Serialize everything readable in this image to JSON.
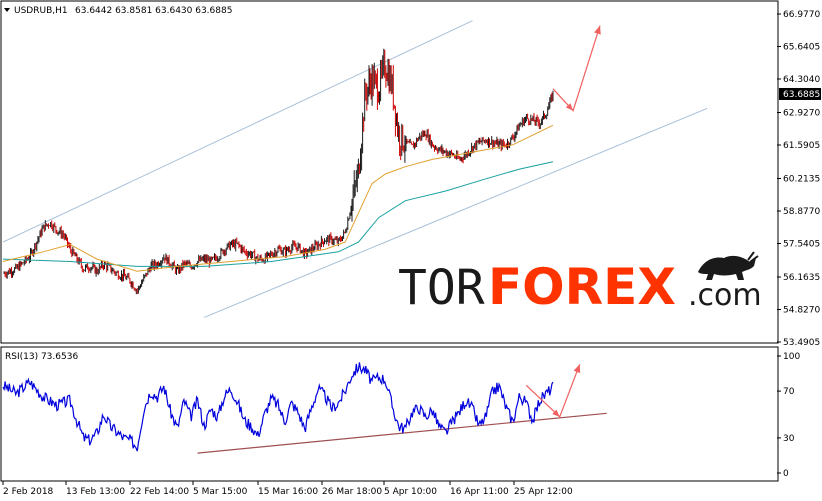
{
  "header": {
    "symbol": "USDRUB,H1",
    "ohlc": "63.6442 63.8581 63.6430 63.6885"
  },
  "rsi_header": "RSI(13) 73.6536",
  "logo": {
    "part1": "TOR",
    "part2": "FOREX",
    "part3": ".com"
  },
  "colors": {
    "candle_up": "#1a1a1a",
    "candle_down": "#cc0000",
    "ma_fast": "#e0a030",
    "ma_slow": "#1aa0a0",
    "channel": "#a8c0d8",
    "arrow": "#f06060",
    "rsi_line": "#0000dd",
    "rsi_trend": "#a05050",
    "current_price_bg": "#000000"
  },
  "chart_data": [
    {
      "type": "candlestick",
      "title": "USDRUB,H1",
      "ylim": [
        53.4905,
        66.977
      ],
      "y_ticks": [
        "66.9770",
        "65.6405",
        "64.3040",
        "62.9270",
        "61.5905",
        "60.2135",
        "58.8770",
        "57.5405",
        "56.1635",
        "54.8270",
        "53.4905"
      ],
      "current_price": "63.6885",
      "x_ticks": [
        "2 Feb 2018",
        "13 Feb 13:00",
        "22 Feb 14:00",
        "5 Mar 15:00",
        "15 Mar 16:00",
        "26 Mar 18:00",
        "5 Apr 10:00",
        "16 Apr 11:00",
        "25 Apr 12:00"
      ],
      "close_path": [
        [
          0,
          56.3
        ],
        [
          2,
          56.5
        ],
        [
          4,
          57.0
        ],
        [
          5,
          57.6
        ],
        [
          6,
          58.2
        ],
        [
          7,
          58.4
        ],
        [
          8,
          58.1
        ],
        [
          9,
          57.9
        ],
        [
          10,
          57.3
        ],
        [
          11,
          56.9
        ],
        [
          12,
          56.5
        ],
        [
          13,
          56.6
        ],
        [
          14,
          56.4
        ],
        [
          15,
          56.7
        ],
        [
          16,
          56.5
        ],
        [
          17,
          56.3
        ],
        [
          18,
          56.2
        ],
        [
          19,
          56.0
        ],
        [
          20,
          55.6
        ],
        [
          21,
          56.1
        ],
        [
          22,
          56.6
        ],
        [
          23,
          56.7
        ],
        [
          24,
          57.0
        ],
        [
          25,
          56.7
        ],
        [
          26,
          56.4
        ],
        [
          27,
          56.7
        ],
        [
          28,
          56.6
        ],
        [
          29,
          56.8
        ],
        [
          30,
          56.9
        ],
        [
          31,
          56.8
        ],
        [
          32,
          57.0
        ],
        [
          33,
          57.3
        ],
        [
          34,
          57.5
        ],
        [
          35,
          57.5
        ],
        [
          36,
          57.2
        ],
        [
          37,
          57.1
        ],
        [
          38,
          56.9
        ],
        [
          39,
          56.9
        ],
        [
          40,
          57.1
        ],
        [
          41,
          57.3
        ],
        [
          42,
          57.2
        ],
        [
          43,
          57.4
        ],
        [
          44,
          57.4
        ],
        [
          45,
          57.1
        ],
        [
          46,
          57.3
        ],
        [
          47,
          57.5
        ],
        [
          48,
          57.7
        ],
        [
          49,
          57.7
        ],
        [
          50,
          57.6
        ],
        [
          51,
          58.0
        ],
        [
          52,
          59.2
        ],
        [
          53,
          60.5
        ],
        [
          54,
          63.7
        ],
        [
          55,
          64.3
        ],
        [
          56,
          63.9
        ],
        [
          57,
          64.9
        ],
        [
          58,
          64.0
        ],
        [
          59,
          62.0
        ],
        [
          60,
          61.7
        ],
        [
          61,
          61.5
        ],
        [
          62,
          61.9
        ],
        [
          63,
          62.1
        ],
        [
          64,
          61.6
        ],
        [
          65,
          61.4
        ],
        [
          66,
          61.3
        ],
        [
          67,
          61.2
        ],
        [
          68,
          61.0
        ],
        [
          69,
          61.2
        ],
        [
          70,
          61.5
        ],
        [
          71,
          61.7
        ],
        [
          72,
          61.8
        ],
        [
          73,
          61.7
        ],
        [
          74,
          61.6
        ],
        [
          75,
          61.6
        ],
        [
          76,
          61.9
        ],
        [
          77,
          62.4
        ],
        [
          78,
          62.7
        ],
        [
          79,
          62.6
        ],
        [
          80,
          62.5
        ],
        [
          81,
          62.9
        ],
        [
          82,
          63.6885
        ]
      ],
      "ma_fast_path": [
        [
          0,
          56.8
        ],
        [
          6,
          57.2
        ],
        [
          10,
          57.5
        ],
        [
          14,
          56.9
        ],
        [
          20,
          56.4
        ],
        [
          26,
          56.6
        ],
        [
          34,
          56.8
        ],
        [
          42,
          57.0
        ],
        [
          48,
          57.3
        ],
        [
          51,
          57.6
        ],
        [
          53,
          58.8
        ],
        [
          55,
          60.0
        ],
        [
          57,
          60.4
        ],
        [
          60,
          60.7
        ],
        [
          64,
          61.0
        ],
        [
          70,
          61.3
        ],
        [
          76,
          61.6
        ],
        [
          82,
          62.4
        ]
      ],
      "ma_slow_path": [
        [
          0,
          56.9
        ],
        [
          10,
          56.8
        ],
        [
          20,
          56.6
        ],
        [
          30,
          56.6
        ],
        [
          40,
          56.8
        ],
        [
          50,
          57.2
        ],
        [
          53,
          57.6
        ],
        [
          56,
          58.6
        ],
        [
          60,
          59.3
        ],
        [
          66,
          59.7
        ],
        [
          72,
          60.2
        ],
        [
          77,
          60.6
        ],
        [
          82,
          60.9
        ]
      ],
      "channel_upper": [
        [
          0,
          57.6
        ],
        [
          70,
          66.7
        ]
      ],
      "channel_lower": [
        [
          30,
          54.5
        ],
        [
          105,
          63.1
        ]
      ],
      "forecast_arrow": [
        [
          82,
          63.9
        ],
        [
          85,
          63.0
        ],
        [
          89,
          66.5
        ]
      ]
    },
    {
      "type": "line",
      "title": "RSI(13) 73.6536",
      "ylim": [
        0,
        100
      ],
      "y_ticks": [
        "100",
        "70",
        "30",
        "0"
      ],
      "rsi_path": [
        [
          0,
          75
        ],
        [
          2,
          68
        ],
        [
          4,
          78
        ],
        [
          6,
          65
        ],
        [
          8,
          58
        ],
        [
          10,
          62
        ],
        [
          11,
          45
        ],
        [
          12,
          30
        ],
        [
          13,
          28
        ],
        [
          14,
          34
        ],
        [
          15,
          50
        ],
        [
          16,
          40
        ],
        [
          17,
          35
        ],
        [
          18,
          30
        ],
        [
          19,
          28
        ],
        [
          20,
          22
        ],
        [
          21,
          55
        ],
        [
          22,
          70
        ],
        [
          23,
          65
        ],
        [
          24,
          74
        ],
        [
          25,
          52
        ],
        [
          26,
          38
        ],
        [
          27,
          62
        ],
        [
          28,
          48
        ],
        [
          29,
          62
        ],
        [
          30,
          40
        ],
        [
          31,
          55
        ],
        [
          32,
          48
        ],
        [
          33,
          66
        ],
        [
          34,
          72
        ],
        [
          35,
          60
        ],
        [
          36,
          45
        ],
        [
          37,
          40
        ],
        [
          38,
          32
        ],
        [
          39,
          50
        ],
        [
          40,
          64
        ],
        [
          41,
          58
        ],
        [
          42,
          44
        ],
        [
          43,
          60
        ],
        [
          44,
          52
        ],
        [
          45,
          38
        ],
        [
          46,
          56
        ],
        [
          47,
          72
        ],
        [
          48,
          66
        ],
        [
          49,
          55
        ],
        [
          50,
          60
        ],
        [
          51,
          70
        ],
        [
          52,
          84
        ],
        [
          53,
          91
        ],
        [
          54,
          88
        ],
        [
          55,
          78
        ],
        [
          56,
          82
        ],
        [
          57,
          80
        ],
        [
          58,
          58
        ],
        [
          59,
          40
        ],
        [
          60,
          38
        ],
        [
          61,
          52
        ],
        [
          62,
          56
        ],
        [
          63,
          48
        ],
        [
          64,
          54
        ],
        [
          65,
          40
        ],
        [
          66,
          34
        ],
        [
          67,
          44
        ],
        [
          68,
          52
        ],
        [
          69,
          62
        ],
        [
          70,
          55
        ],
        [
          71,
          40
        ],
        [
          72,
          48
        ],
        [
          73,
          70
        ],
        [
          74,
          74
        ],
        [
          75,
          56
        ],
        [
          76,
          44
        ],
        [
          77,
          66
        ],
        [
          78,
          60
        ],
        [
          79,
          45
        ],
        [
          80,
          62
        ],
        [
          81,
          68
        ],
        [
          82,
          73.6536
        ]
      ],
      "trend_line": [
        [
          29,
          17
        ],
        [
          90,
          51
        ]
      ],
      "forecast_arrow": [
        [
          78,
          75
        ],
        [
          83,
          48
        ],
        [
          86,
          93
        ]
      ]
    }
  ]
}
